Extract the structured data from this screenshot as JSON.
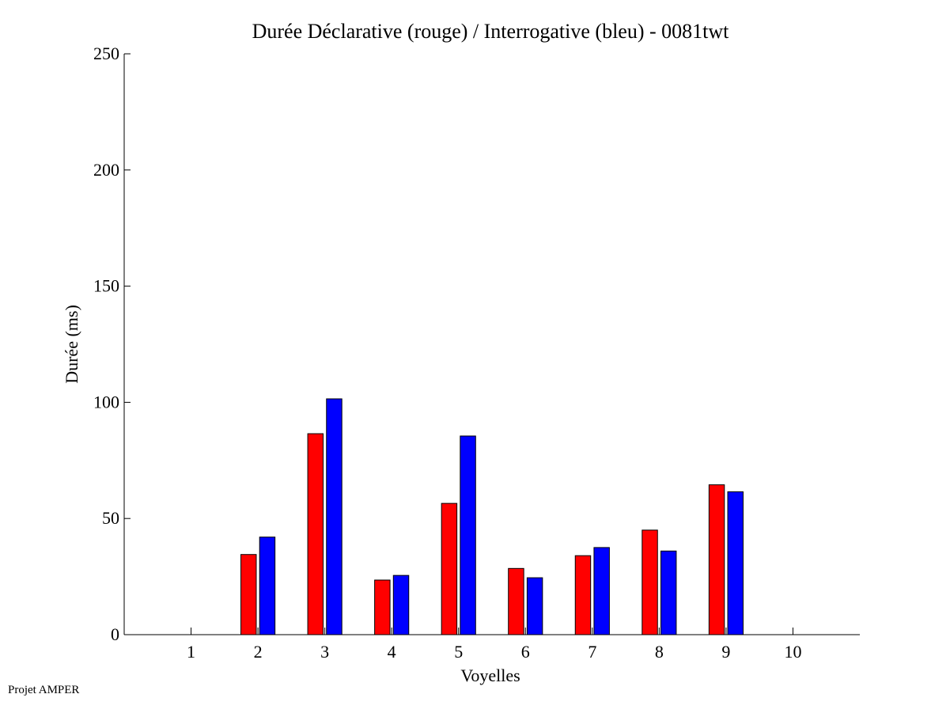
{
  "footer": {
    "text": "Projet AMPER"
  },
  "chart_data": {
    "type": "bar",
    "title": "Durée Déclarative (rouge) / Interrogative (bleu) - 0081twt",
    "xlabel": "Voyelles",
    "ylabel": "Durée (ms)",
    "categories": [
      "1",
      "2",
      "3",
      "4",
      "5",
      "6",
      "7",
      "8",
      "9",
      "10"
    ],
    "ylim": [
      0,
      250
    ],
    "yticks": [
      0,
      50,
      100,
      150,
      200,
      250
    ],
    "xlim": [
      0,
      11
    ],
    "grid": false,
    "series": [
      {
        "color": "#ff0000",
        "values": [
          0,
          34.5,
          86.5,
          23.5,
          56.5,
          28.5,
          34,
          45,
          64.5,
          0
        ]
      },
      {
        "color": "#0000ff",
        "values": [
          0,
          42,
          101.5,
          25.5,
          85.5,
          24.5,
          37.5,
          36,
          61.5,
          0
        ]
      }
    ]
  }
}
